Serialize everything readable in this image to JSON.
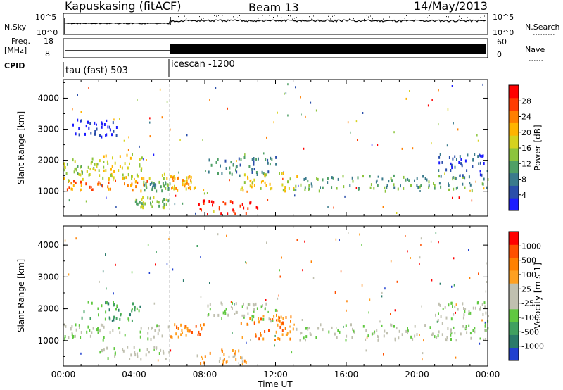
{
  "header": {
    "station": "Kapuskasing (fitACF)",
    "beam": "Beam 13",
    "date": "14/May/2013"
  },
  "top_panels": {
    "nsky_label": "N.Sky",
    "nsky_ticks": [
      "10^5",
      "10^0"
    ],
    "nsearch_label": "N.Search",
    "nsearch_ticks": [
      "10^5",
      "10^0"
    ],
    "freq_label_line1": "Freq.",
    "freq_label_line2": "[MHz]",
    "freq_ticks": [
      "18",
      "8"
    ],
    "nave_label": "Nave",
    "nave_ticks": [
      "60",
      "0"
    ],
    "cpid_label": "CPID",
    "cpid_segments": [
      {
        "label": "tau (fast) 503"
      },
      {
        "label": "icescan -1200"
      }
    ]
  },
  "chart_data": [
    {
      "type": "heatmap",
      "title": "",
      "ylabel": "Slant Range [km]",
      "xlabel": "",
      "yticks": [
        "1000",
        "2000",
        "3000",
        "4000"
      ],
      "ylim": [
        200,
        4600
      ],
      "xlim": [
        0,
        24
      ],
      "colorbar": {
        "label": "Power [dB]",
        "tick_labels": [
          "4",
          "8",
          "12",
          "16",
          "20",
          "24",
          "28"
        ],
        "colors": [
          "#1c1cff",
          "#2a4eaa",
          "#3a7a8c",
          "#4fa066",
          "#8cc43c",
          "#d6d21e",
          "#ffb400",
          "#ff7f00",
          "#ff3c00",
          "#ff0000"
        ]
      },
      "bands": [
        {
          "t0": 0.0,
          "t1": 2.0,
          "r0": 1550,
          "r1": 2050,
          "level": 4
        },
        {
          "t0": 2.0,
          "t1": 4.5,
          "r0": 1600,
          "r1": 2200,
          "level": 5
        },
        {
          "t0": 0.0,
          "t1": 5.0,
          "r0": 1000,
          "r1": 1350,
          "level": 7
        },
        {
          "t0": 0.0,
          "t1": 6.0,
          "r0": 1350,
          "r1": 1550,
          "level": 5
        },
        {
          "t0": 4.5,
          "t1": 6.0,
          "r0": 1000,
          "r1": 1300,
          "level": 3
        },
        {
          "t0": 4.0,
          "t1": 6.0,
          "r0": 450,
          "r1": 800,
          "level": 4
        },
        {
          "t0": 6.0,
          "t1": 7.5,
          "r0": 1000,
          "r1": 1500,
          "level": 6
        },
        {
          "t0": 7.5,
          "t1": 11.0,
          "r0": 250,
          "r1": 700,
          "level": 9
        },
        {
          "t0": 8.0,
          "t1": 12.0,
          "r0": 1500,
          "r1": 2100,
          "level": 2
        },
        {
          "t0": 10.0,
          "t1": 13.5,
          "r0": 1000,
          "r1": 1600,
          "level": 5
        },
        {
          "t0": 13.0,
          "t1": 24.0,
          "r0": 1000,
          "r1": 1500,
          "level": 3
        },
        {
          "t0": 21.0,
          "t1": 24.0,
          "r0": 1500,
          "r1": 2200,
          "level": 1
        },
        {
          "t0": 0.5,
          "t1": 3.0,
          "r0": 2700,
          "r1": 3300,
          "level": 0
        }
      ]
    },
    {
      "type": "heatmap",
      "title": "",
      "ylabel": "Slant Range [km]",
      "xlabel": "Time UT",
      "yticks": [
        "1000",
        "2000",
        "3000",
        "4000"
      ],
      "xticks": [
        "00:00",
        "04:00",
        "08:00",
        "12:00",
        "16:00",
        "20:00",
        "00:00"
      ],
      "ylim": [
        200,
        4600
      ],
      "xlim": [
        0,
        24
      ],
      "colorbar": {
        "label": "Velocity [m s-1]",
        "tick_labels": [
          "1000",
          "500",
          "100",
          "25",
          "-25",
          "-100",
          "-500",
          "-1000"
        ],
        "colors": [
          "#2040d0",
          "#2a7a6a",
          "#40a060",
          "#60c840",
          "#c0c0b0",
          "#c0c0b0",
          "#ffa020",
          "#ff8000",
          "#ff5000",
          "#ff0000"
        ]
      },
      "bands": [
        {
          "t0": 0.0,
          "t1": 6.0,
          "r0": 1000,
          "r1": 1500,
          "level": 4
        },
        {
          "t0": 1.0,
          "t1": 4.5,
          "r0": 1600,
          "r1": 2200,
          "level": 2
        },
        {
          "t0": 6.0,
          "t1": 8.0,
          "r0": 1100,
          "r1": 1500,
          "level": 7
        },
        {
          "t0": 7.5,
          "t1": 10.5,
          "r0": 250,
          "r1": 700,
          "level": 6
        },
        {
          "t0": 10.0,
          "t1": 13.0,
          "r0": 1000,
          "r1": 1800,
          "level": 7
        },
        {
          "t0": 8.0,
          "t1": 12.0,
          "r0": 1600,
          "r1": 2200,
          "level": 4
        },
        {
          "t0": 13.0,
          "t1": 24.0,
          "r0": 1000,
          "r1": 1500,
          "level": 4
        },
        {
          "t0": 21.0,
          "t1": 24.0,
          "r0": 1500,
          "r1": 2200,
          "level": 4
        },
        {
          "t0": 2.0,
          "t1": 6.0,
          "r0": 400,
          "r1": 800,
          "level": 4
        }
      ]
    }
  ]
}
